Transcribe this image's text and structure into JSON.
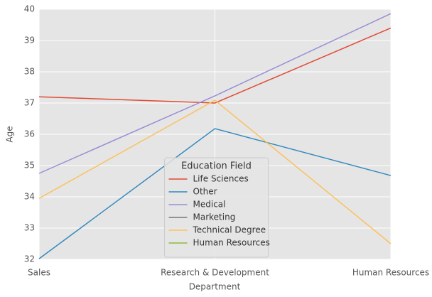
{
  "chart_data": {
    "type": "line",
    "xlabel": "Department",
    "ylabel": "Age",
    "categories": [
      "Sales",
      "Research & Development",
      "Human Resources"
    ],
    "series": [
      {
        "name": "Life Sciences",
        "color": "#E24A33",
        "values": [
          37.2,
          37.0,
          39.4
        ]
      },
      {
        "name": "Other",
        "color": "#348ABD",
        "values": [
          32.02,
          36.18,
          34.68
        ]
      },
      {
        "name": "Medical",
        "color": "#988ED5",
        "values": [
          34.75,
          37.23,
          39.86
        ]
      },
      {
        "name": "Marketing",
        "color": "#777777",
        "values": [
          null,
          null,
          null
        ]
      },
      {
        "name": "Technical Degree",
        "color": "#FBC15E",
        "values": [
          33.95,
          37.09,
          32.5
        ]
      },
      {
        "name": "Human Resources",
        "color": "#8EBA42",
        "values": [
          null,
          null,
          null
        ]
      }
    ],
    "legend_title": "Education Field",
    "legend": "lower center",
    "ylim": [
      32,
      40
    ],
    "yticks": [
      32,
      33,
      34,
      35,
      36,
      37,
      38,
      39,
      40
    ],
    "grid": true
  }
}
